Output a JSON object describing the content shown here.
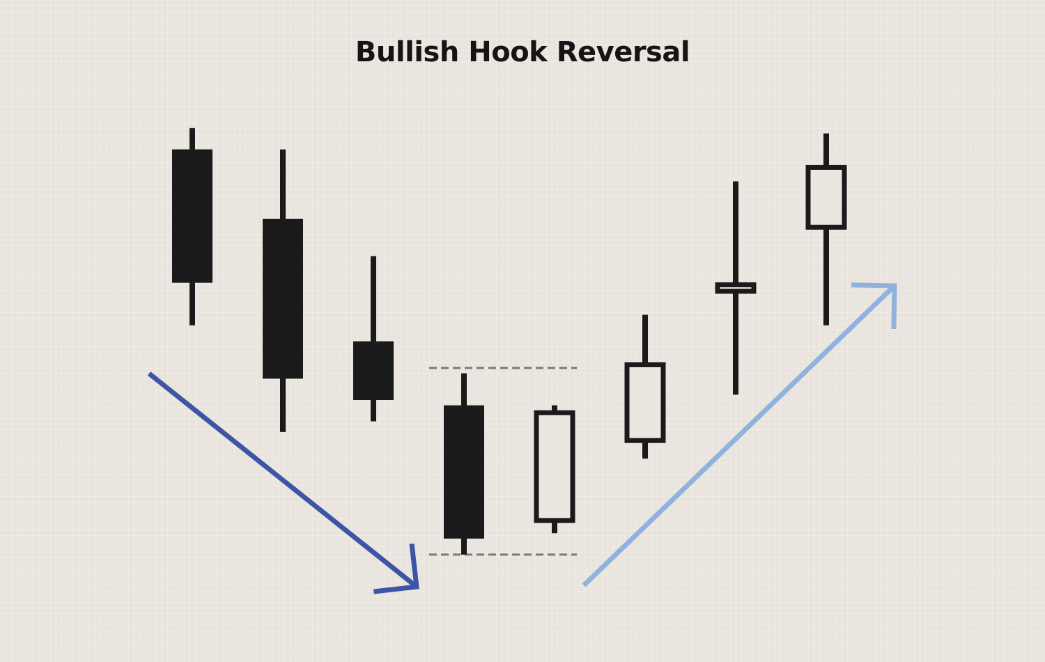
{
  "chart_data": {
    "type": "candlestick",
    "title": "Bullish Hook Reversal",
    "xlabel": "",
    "ylabel": "",
    "ylim": [
      0,
      100
    ],
    "grid": true,
    "candles": [
      {
        "open": 87,
        "close": 62,
        "high": 91,
        "low": 54,
        "color": "dark"
      },
      {
        "open": 74,
        "close": 44,
        "high": 87,
        "low": 34,
        "color": "dark"
      },
      {
        "open": 51,
        "close": 40,
        "high": 67,
        "low": 36,
        "color": "dark"
      },
      {
        "open": 39,
        "close": 14,
        "high": 45,
        "low": 11,
        "color": "dark"
      },
      {
        "open": 17,
        "close": 38,
        "high": 39,
        "low": 15,
        "color": "hollow"
      },
      {
        "open": 32,
        "close": 47,
        "high": 56,
        "low": 29,
        "color": "hollow"
      },
      {
        "open": 60,
        "close": 62,
        "high": 81,
        "low": 41,
        "color": "hollow"
      },
      {
        "open": 72,
        "close": 84,
        "high": 90,
        "low": 54,
        "color": "hollow"
      }
    ],
    "reference_lines": [
      {
        "level": 46,
        "style": "dashed",
        "from_candle": 3,
        "to_candle": 4
      },
      {
        "level": 11,
        "style": "dashed",
        "from_candle": 3,
        "to_candle": 4
      }
    ],
    "trend_arrows": [
      {
        "direction": "down",
        "color": "#3d55a5"
      },
      {
        "direction": "up",
        "color": "#8fb2de"
      }
    ],
    "colors": {
      "dark_candle": "#1a1a1a",
      "hollow_candle_fill": "#ebe6df",
      "outline": "#1a1a1a",
      "dashed_line": "#7a7a7a",
      "background": "#e9e4dd"
    }
  }
}
